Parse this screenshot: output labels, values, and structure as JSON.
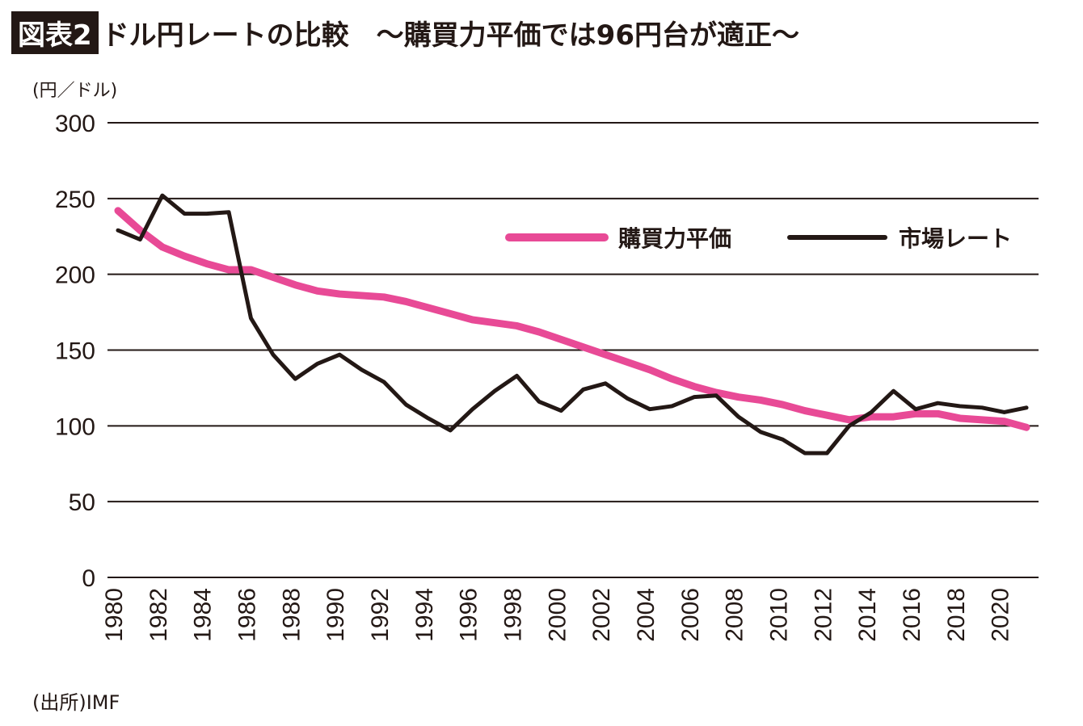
{
  "title_badge": "図表2",
  "title": "ドル円レートの比較　～購買力平価では96円台が適正～",
  "unit_label": "(円／ドル)",
  "source": "(出所)IMF",
  "chart_data": {
    "type": "line",
    "title": "ドル円レートの比較　～購買力平価では96円台が適正～",
    "ylabel": "(円／ドル)",
    "ylim": [
      0,
      300
    ],
    "yticks": [
      0,
      50,
      100,
      150,
      200,
      250,
      300
    ],
    "xticks": [
      1980,
      1982,
      1984,
      1986,
      1988,
      1990,
      1992,
      1994,
      1996,
      1998,
      2000,
      2002,
      2004,
      2006,
      2008,
      2010,
      2012,
      2014,
      2016,
      2018,
      2020
    ],
    "grid": "horizontal",
    "legend_placement": "top-right",
    "x": [
      1980,
      1981,
      1982,
      1983,
      1984,
      1985,
      1986,
      1987,
      1988,
      1989,
      1990,
      1991,
      1992,
      1993,
      1994,
      1995,
      1996,
      1997,
      1998,
      1999,
      2000,
      2001,
      2002,
      2003,
      2004,
      2005,
      2006,
      2007,
      2008,
      2009,
      2010,
      2011,
      2012,
      2013,
      2014,
      2015,
      2016,
      2017,
      2018,
      2019,
      2020,
      2021
    ],
    "series": [
      {
        "name": "購買力平価",
        "color": "#e84a96",
        "values": [
          242,
          229,
          218,
          212,
          207,
          203,
          203,
          198,
          193,
          189,
          187,
          186,
          185,
          182,
          178,
          174,
          170,
          168,
          166,
          162,
          157,
          152,
          147,
          142,
          137,
          131,
          126,
          122,
          119,
          117,
          114,
          110,
          107,
          104,
          106,
          106,
          108,
          108,
          105,
          104,
          103,
          99
        ]
      },
      {
        "name": "市場レート",
        "color": "#231815",
        "values": [
          229,
          223,
          252,
          240,
          240,
          241,
          171,
          147,
          131,
          141,
          147,
          137,
          129,
          114,
          105,
          97,
          111,
          123,
          133,
          116,
          110,
          124,
          128,
          118,
          111,
          113,
          119,
          120,
          106,
          96,
          91,
          82,
          82,
          100,
          109,
          123,
          111,
          115,
          113,
          112,
          109,
          112
        ]
      }
    ]
  }
}
